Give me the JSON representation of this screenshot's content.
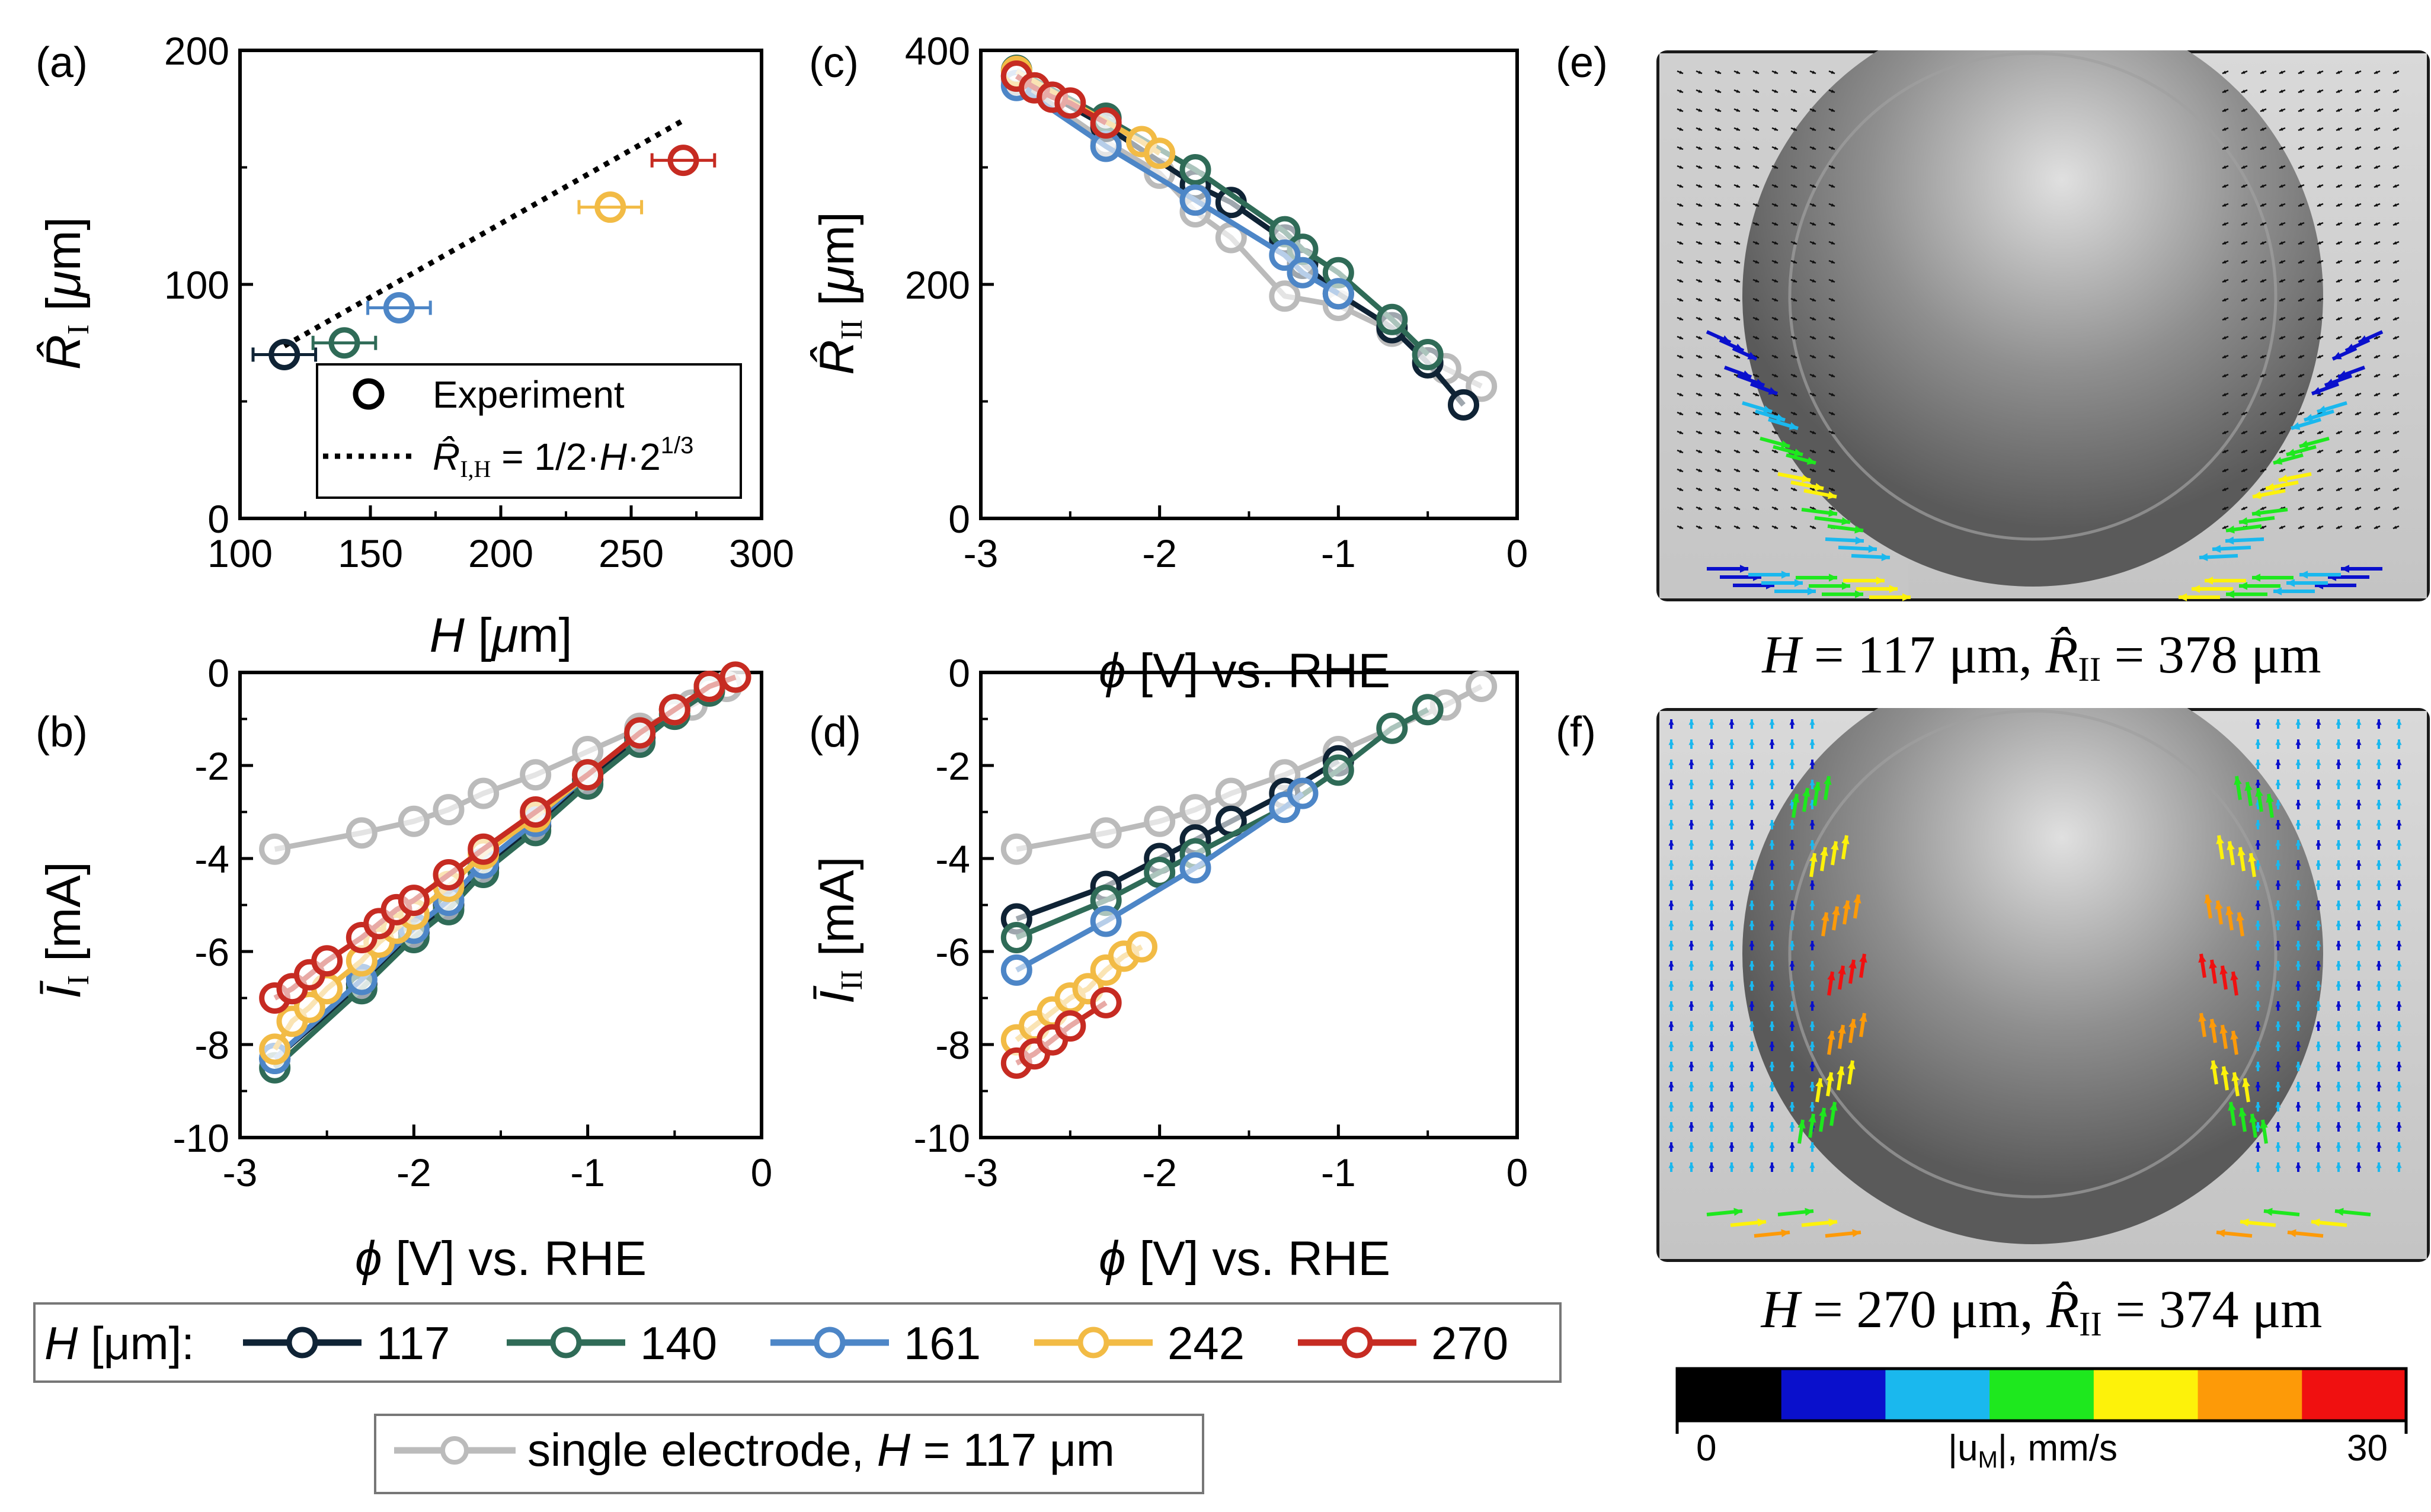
{
  "panel_labels": {
    "a": "(a)",
    "b": "(b)",
    "c": "(c)",
    "d": "(d)",
    "e": "(e)",
    "f": "(f)"
  },
  "colors": {
    "h117": "#0f2335",
    "h140": "#2f6b57",
    "h161": "#4d86c7",
    "h242": "#f2bb45",
    "h270": "#c62b22",
    "single": "#bbbbbb"
  },
  "chart_data": [
    {
      "id": "a",
      "type": "scatter",
      "xlabel": "H [μm]",
      "ylabel": "R̂I [μm]",
      "xlim": [
        100,
        300
      ],
      "ylim": [
        0,
        200
      ],
      "xticks": [
        "100",
        "150",
        "200",
        "250",
        "300"
      ],
      "yticks": [
        "0",
        "100",
        "200"
      ],
      "points": [
        {
          "name": "117",
          "x": 117,
          "y": 70,
          "xerr": 12,
          "color": "h117"
        },
        {
          "name": "140",
          "x": 140,
          "y": 75,
          "xerr": 12,
          "color": "h140"
        },
        {
          "name": "161",
          "x": 161,
          "y": 90,
          "xerr": 12,
          "color": "h161"
        },
        {
          "name": "242",
          "x": 242,
          "y": 133,
          "xerr": 12,
          "color": "h242"
        },
        {
          "name": "270",
          "x": 270,
          "y": 153,
          "xerr": 12,
          "color": "h270"
        }
      ],
      "fit_line": {
        "x": [
          117,
          270
        ],
        "y": [
          73.7,
          170.1
        ]
      },
      "legend": {
        "experiment": "Experiment",
        "model_prefix": "R̂",
        "model_sub": "I,H",
        "model_eq": " = 1/2·",
        "model_H": "H",
        "model_pow": "·2",
        "model_exp": "1/3"
      }
    },
    {
      "id": "b",
      "type": "line",
      "xlabel": "ϕ [V] vs. RHE",
      "ylabel": "ĪI [mA]",
      "xlim": [
        -3,
        0
      ],
      "ylim": [
        -10,
        0
      ],
      "xticks": [
        "-3",
        "-2",
        "-1",
        "0"
      ],
      "yticks": [
        "0",
        "-2",
        "-4",
        "-6",
        "-8",
        "-10"
      ],
      "series": [
        {
          "name": "single",
          "color": "single",
          "x": [
            -2.8,
            -2.3,
            -2.0,
            -1.8,
            -1.6,
            -1.3,
            -1.0,
            -0.7,
            -0.4,
            -0.2
          ],
          "y": [
            -3.8,
            -3.45,
            -3.2,
            -2.95,
            -2.6,
            -2.2,
            -1.7,
            -1.2,
            -0.7,
            -0.3
          ]
        },
        {
          "name": "117",
          "color": "h117",
          "x": [
            -2.8,
            -2.3,
            -2.0,
            -1.8,
            -1.6,
            -1.3,
            -1.0,
            -0.7,
            -0.5,
            -0.3
          ],
          "y": [
            -8.3,
            -6.7,
            -5.6,
            -5.0,
            -4.2,
            -3.3,
            -2.3,
            -1.4,
            -0.8,
            -0.3
          ]
        },
        {
          "name": "140",
          "color": "h140",
          "x": [
            -2.8,
            -2.3,
            -2.0,
            -1.8,
            -1.6,
            -1.3,
            -1.0,
            -0.7,
            -0.5,
            -0.3
          ],
          "y": [
            -8.5,
            -6.8,
            -5.7,
            -5.1,
            -4.3,
            -3.4,
            -2.4,
            -1.5,
            -0.9,
            -0.4
          ]
        },
        {
          "name": "161",
          "color": "h161",
          "x": [
            -2.8,
            -2.3,
            -2.0,
            -1.8,
            -1.6,
            -1.3,
            -1.0,
            -0.7,
            -0.5,
            -0.3
          ],
          "y": [
            -8.3,
            -6.6,
            -5.5,
            -4.9,
            -4.1,
            -3.2,
            -2.2,
            -1.3,
            -0.8,
            -0.3
          ]
        },
        {
          "name": "242",
          "color": "h242",
          "x": [
            -2.8,
            -2.7,
            -2.6,
            -2.5,
            -2.3,
            -2.2,
            -2.1,
            -2.0,
            -1.8,
            -1.6,
            -1.3,
            -1.0,
            -0.7,
            -0.5,
            -0.3,
            -0.15
          ],
          "y": [
            -8.1,
            -7.5,
            -7.2,
            -6.8,
            -6.2,
            -5.8,
            -5.5,
            -5.2,
            -4.6,
            -3.9,
            -3.1,
            -2.2,
            -1.3,
            -0.8,
            -0.3,
            -0.1
          ]
        },
        {
          "name": "270",
          "color": "h270",
          "x": [
            -2.8,
            -2.7,
            -2.6,
            -2.5,
            -2.3,
            -2.2,
            -2.1,
            -2.0,
            -1.8,
            -1.6,
            -1.3,
            -1.0,
            -0.7,
            -0.5,
            -0.3,
            -0.15
          ],
          "y": [
            -7.0,
            -6.8,
            -6.5,
            -6.2,
            -5.7,
            -5.4,
            -5.1,
            -4.9,
            -4.35,
            -3.8,
            -3.0,
            -2.2,
            -1.3,
            -0.8,
            -0.3,
            -0.1
          ]
        }
      ]
    },
    {
      "id": "c",
      "type": "line",
      "xlabel": "ϕ [V] vs. RHE",
      "ylabel": "R̂II [μm]",
      "xlim": [
        -3,
        0
      ],
      "ylim": [
        0,
        400
      ],
      "xticks": [
        "-3",
        "-2",
        "-1",
        "0"
      ],
      "yticks": [
        "0",
        "200",
        "400"
      ],
      "series": [
        {
          "name": "single",
          "color": "single",
          "x": [
            -2.8,
            -2.3,
            -2.0,
            -1.8,
            -1.6,
            -1.3,
            -1.0,
            -0.7,
            -0.4,
            -0.2
          ],
          "y": [
            375,
            322,
            295,
            262,
            240,
            190,
            182,
            160,
            128,
            113
          ]
        },
        {
          "name": "117",
          "color": "h117",
          "x": [
            -2.8,
            -2.3,
            -1.8,
            -1.6,
            -1.3,
            -1.2,
            -1.0,
            -0.7,
            -0.5,
            -0.3
          ],
          "y": [
            378,
            335,
            285,
            270,
            238,
            218,
            192,
            163,
            133,
            97
          ]
        },
        {
          "name": "140",
          "color": "h140",
          "x": [
            -2.8,
            -2.3,
            -1.8,
            -1.3,
            -1.2,
            -1.0,
            -0.7,
            -0.5
          ],
          "y": [
            383,
            342,
            298,
            245,
            230,
            210,
            170,
            140
          ]
        },
        {
          "name": "161",
          "color": "h161",
          "x": [
            -2.8,
            -2.3,
            -1.8,
            -1.3,
            -1.2,
            -1.0
          ],
          "y": [
            370,
            318,
            272,
            225,
            210,
            192
          ]
        },
        {
          "name": "242",
          "color": "h242",
          "x": [
            -2.8,
            -2.1,
            -2.0
          ],
          "y": [
            382,
            322,
            312
          ]
        },
        {
          "name": "270",
          "color": "h270",
          "x": [
            -2.8,
            -2.7,
            -2.6,
            -2.5,
            -2.3
          ],
          "y": [
            378,
            368,
            360,
            355,
            338
          ]
        }
      ]
    },
    {
      "id": "d",
      "type": "line",
      "xlabel": "ϕ [V] vs. RHE",
      "ylabel": "ĪII [mA]",
      "xlim": [
        -3,
        0
      ],
      "ylim": [
        -10,
        0
      ],
      "xticks": [
        "-3",
        "-2",
        "-1",
        "0"
      ],
      "yticks": [
        "0",
        "-2",
        "-4",
        "-6",
        "-8",
        "-10"
      ],
      "series": [
        {
          "name": "single",
          "color": "single",
          "x": [
            -2.8,
            -2.3,
            -2.0,
            -1.8,
            -1.6,
            -1.3,
            -1.0,
            -0.7,
            -0.4,
            -0.2
          ],
          "y": [
            -3.8,
            -3.45,
            -3.2,
            -2.95,
            -2.6,
            -2.2,
            -1.7,
            -1.2,
            -0.7,
            -0.3
          ]
        },
        {
          "name": "117",
          "color": "h117",
          "x": [
            -2.8,
            -2.3,
            -2.0,
            -1.8,
            -1.6,
            -1.3,
            -1.0
          ],
          "y": [
            -5.3,
            -4.6,
            -4.0,
            -3.6,
            -3.2,
            -2.6,
            -1.9
          ]
        },
        {
          "name": "140",
          "color": "h140",
          "x": [
            -2.8,
            -2.3,
            -2.0,
            -1.8,
            -1.3,
            -1.0,
            -0.7,
            -0.5
          ],
          "y": [
            -5.7,
            -4.9,
            -4.3,
            -3.9,
            -2.9,
            -2.1,
            -1.2,
            -0.8
          ]
        },
        {
          "name": "161",
          "color": "h161",
          "x": [
            -2.8,
            -2.3,
            -1.8,
            -1.3,
            -1.2
          ],
          "y": [
            -6.4,
            -5.35,
            -4.2,
            -2.9,
            -2.6
          ]
        },
        {
          "name": "242",
          "color": "h242",
          "x": [
            -2.8,
            -2.7,
            -2.6,
            -2.5,
            -2.4,
            -2.3,
            -2.2,
            -2.1
          ],
          "y": [
            -7.9,
            -7.6,
            -7.3,
            -7.0,
            -6.8,
            -6.4,
            -6.1,
            -5.9
          ]
        },
        {
          "name": "270",
          "color": "h270",
          "x": [
            -2.8,
            -2.7,
            -2.6,
            -2.5,
            -2.3
          ],
          "y": [
            -8.4,
            -8.2,
            -7.9,
            -7.6,
            -7.1
          ]
        }
      ]
    }
  ],
  "legend_main": {
    "prefix_H": "H",
    "prefix_unit": " [μm]:",
    "entries": [
      {
        "label": "117",
        "color": "h117"
      },
      {
        "label": "140",
        "color": "h140"
      },
      {
        "label": "161",
        "color": "h161"
      },
      {
        "label": "242",
        "color": "h242"
      },
      {
        "label": "270",
        "color": "h270"
      }
    ]
  },
  "legend_single": {
    "label": "single electrode, ",
    "H": "H",
    "rest": " = 117 μm"
  },
  "images": {
    "e": {
      "cap_H": "H",
      "cap_mid": " = 117 μm,  ",
      "cap_R": "R̂",
      "cap_sub": "II",
      "cap_end": " = 378 μm"
    },
    "f": {
      "cap_H": "H",
      "cap_mid": " = 270 μm,  ",
      "cap_R": "R̂",
      "cap_sub": "II",
      "cap_end": " = 374 μm"
    }
  },
  "colorbar": {
    "colors": [
      "#000000",
      "#0a10cc",
      "#1ab8ee",
      "#1ee81e",
      "#fdf20a",
      "#fd9a08",
      "#f01010"
    ],
    "min_label": "0",
    "max_label": "30",
    "label_prefix": "|u",
    "label_sub": "M",
    "label_suffix": "|, mm/s"
  }
}
